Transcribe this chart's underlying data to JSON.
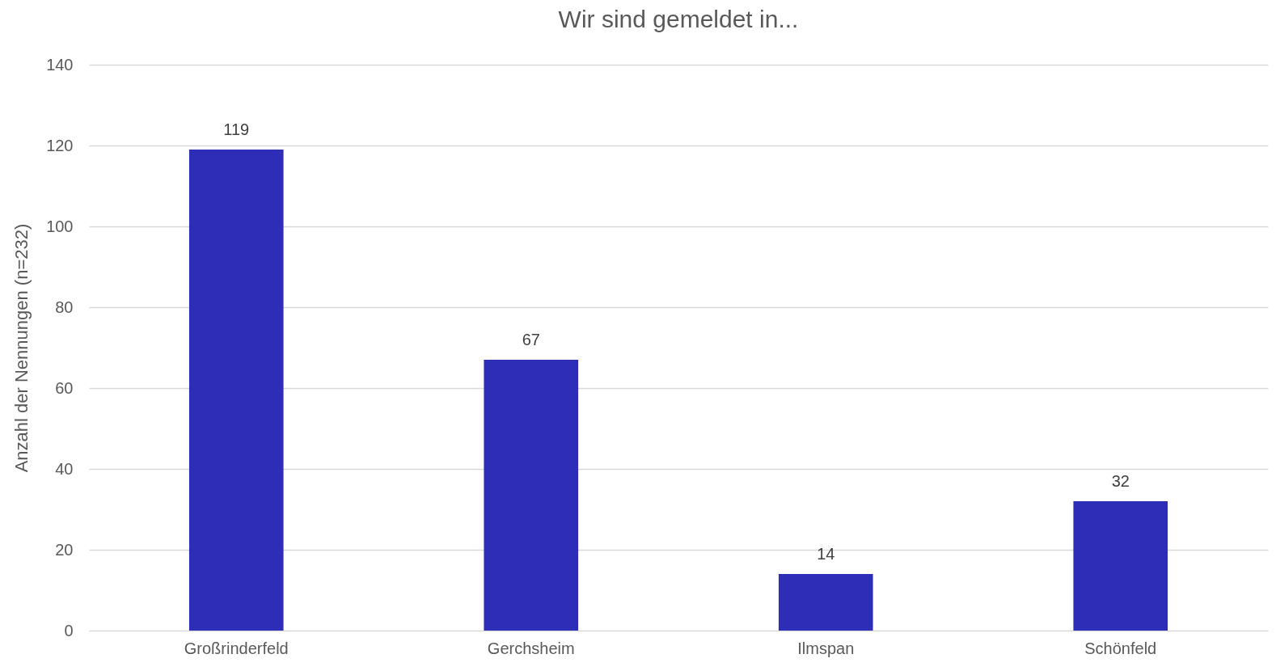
{
  "chart_data": {
    "type": "bar",
    "title": "Wir sind gemeldet in...",
    "ylabel": "Anzahl der Nennungen (n=232)",
    "categories": [
      "Großrinderfeld",
      "Gerchsheim",
      "Ilmspan",
      "Schönfeld"
    ],
    "values": [
      119,
      67,
      14,
      32
    ],
    "color": "#2e2db8",
    "ylim": [
      0,
      140
    ],
    "yticks": [
      0,
      20,
      40,
      60,
      80,
      100,
      120,
      140
    ],
    "grid": "y",
    "data_labels": true
  }
}
